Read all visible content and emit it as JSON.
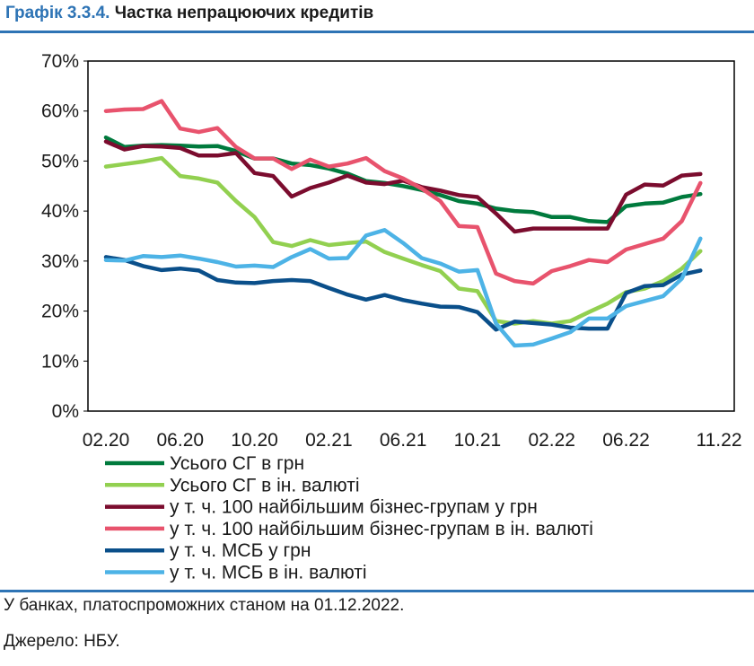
{
  "header": {
    "number": "Графік 3.3.4.",
    "title": "Частка непрацюючих кредитів"
  },
  "notes": {
    "scope": "У банках, платоспроможних станом на 01.12.2022.",
    "source": "Джерело: НБУ."
  },
  "chart_data": {
    "type": "line",
    "ylim": [
      0,
      70
    ],
    "yticks": [
      "0%",
      "10%",
      "20%",
      "30%",
      "40%",
      "50%",
      "60%",
      "70%"
    ],
    "xticks": [
      "02.20",
      "06.20",
      "10.20",
      "02.21",
      "06.21",
      "10.21",
      "02.22",
      "06.22",
      "11.22"
    ],
    "x": [
      "02.20",
      "03.20",
      "04.20",
      "05.20",
      "06.20",
      "07.20",
      "08.20",
      "09.20",
      "10.20",
      "11.20",
      "12.20",
      "01.21",
      "02.21",
      "03.21",
      "04.21",
      "05.21",
      "06.21",
      "07.21",
      "08.21",
      "09.21",
      "10.21",
      "11.21",
      "12.21",
      "01.22",
      "02.22",
      "03.22",
      "04.22",
      "05.22",
      "06.22",
      "07.22",
      "08.22",
      "09.22",
      "10.22",
      "11.22"
    ],
    "legend_position": "bottom",
    "grid": false,
    "series": [
      {
        "name": "Усього СГ в грн",
        "color": "#007a3d",
        "values": [
          54.7,
          52.8,
          53.1,
          53.2,
          53.1,
          52.9,
          53.0,
          52.0,
          50.5,
          50.5,
          49.5,
          49.2,
          48.5,
          47.5,
          46.0,
          45.6,
          45.0,
          44.2,
          43.2,
          42.0,
          41.5,
          40.5,
          40.0,
          39.8,
          38.8,
          38.8,
          38.0,
          37.8,
          41.0,
          41.5,
          41.7,
          42.8,
          43.4,
          null
        ]
      },
      {
        "name": "Усього СГ в ін. валюті",
        "color": "#92d050",
        "values": [
          48.9,
          49.4,
          49.9,
          50.6,
          47.0,
          46.5,
          45.7,
          42.0,
          38.8,
          33.8,
          33.0,
          34.2,
          33.2,
          33.6,
          33.9,
          31.8,
          30.5,
          29.2,
          28.0,
          24.5,
          24.0,
          18.0,
          17.5,
          18.0,
          17.5,
          18.0,
          19.8,
          21.5,
          23.8,
          24.5,
          26.0,
          28.5,
          32.0,
          null
        ]
      },
      {
        "name": "у т. ч. 100 найбільшим бізнес-групам у грн",
        "color": "#7b0c2e",
        "values": [
          53.9,
          52.3,
          53.0,
          52.9,
          52.6,
          51.1,
          51.1,
          51.6,
          47.6,
          47.0,
          42.9,
          44.6,
          45.7,
          47.1,
          45.7,
          45.4,
          46.1,
          44.8,
          44.1,
          43.2,
          42.8,
          39.5,
          35.9,
          36.5,
          36.5,
          36.5,
          36.5,
          36.5,
          43.3,
          45.3,
          45.1,
          47.1,
          47.4,
          null
        ]
      },
      {
        "name": "у т. ч. 100 найбільшим бізнес-групам в ін. валюті",
        "color": "#e8536d",
        "values": [
          60.0,
          60.3,
          60.4,
          62.0,
          56.5,
          55.8,
          56.6,
          52.8,
          50.5,
          50.5,
          48.4,
          50.3,
          48.9,
          49.5,
          50.6,
          48.0,
          46.5,
          44.5,
          42.0,
          37.0,
          36.8,
          27.5,
          26.0,
          25.5,
          28.0,
          29.0,
          30.2,
          29.8,
          32.3,
          33.4,
          34.5,
          38.0,
          45.6,
          null
        ]
      },
      {
        "name": "у т. ч. МСБ у грн",
        "color": "#0a4f8a",
        "values": [
          30.8,
          30.2,
          29.0,
          28.2,
          28.5,
          28.1,
          26.2,
          25.7,
          25.6,
          26.0,
          26.2,
          26.0,
          24.6,
          23.3,
          22.3,
          23.2,
          22.2,
          21.5,
          20.9,
          20.8,
          19.8,
          16.3,
          17.9,
          17.6,
          17.3,
          16.7,
          16.5,
          16.5,
          23.6,
          25.0,
          25.2,
          27.3,
          28.1,
          null
        ]
      },
      {
        "name": "у т. ч. МСБ в  ін. валюті",
        "color": "#4db3e6",
        "values": [
          30.2,
          30.1,
          31.0,
          30.8,
          31.1,
          30.5,
          29.8,
          28.9,
          29.1,
          28.8,
          30.8,
          32.4,
          30.5,
          30.6,
          35.1,
          36.2,
          33.6,
          30.6,
          29.5,
          27.9,
          28.2,
          17.5,
          13.1,
          13.3,
          14.5,
          15.8,
          18.5,
          18.5,
          21.0,
          22.0,
          23.0,
          26.5,
          34.5,
          null
        ]
      }
    ]
  }
}
